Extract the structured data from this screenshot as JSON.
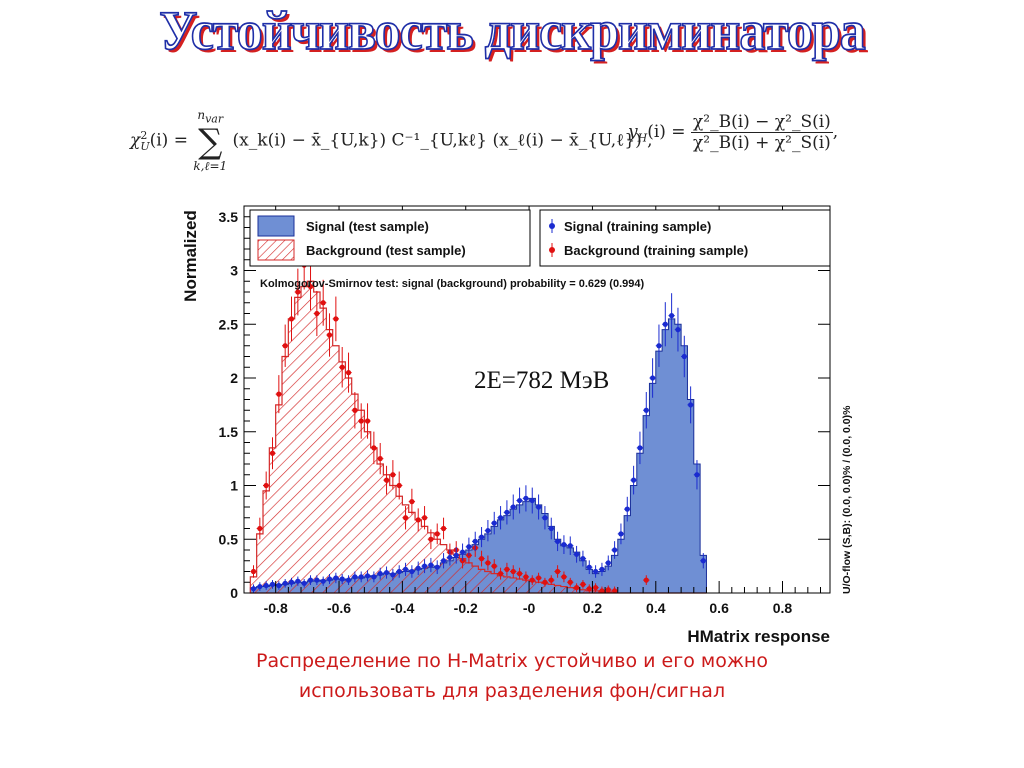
{
  "slide": {
    "title": "Устойчивость дискриминатора",
    "caption_line1": "Распределение по H-Matrix устойчиво и его можно",
    "caption_line2": "использовать для разделения фон/сигнал",
    "annotation": "2E=782 МэВ",
    "formula_chi": {
      "lhs_sym": "χ",
      "lhs_sup": "2",
      "lhs_sub": "U",
      "lhs_arg": "(i) =",
      "sum_top": "n",
      "sum_top_sub": "var",
      "sum_bottom": "k,ℓ=1",
      "body": "(x_k(i) − x̄_{U,k}) C⁻¹_{U,kℓ} (x_ℓ(i) − x̄_{U,ℓ}) ,"
    },
    "formula_yh": {
      "lhs": "y",
      "lhs_sub": "H",
      "lhs_arg": "(i) =",
      "num": "χ²_B(i) − χ²_S(i)",
      "den": "χ²_B(i) + χ²_S(i)",
      "tail": ","
    }
  },
  "chart_data": {
    "type": "histogram",
    "xlabel": "HMatrix response",
    "ylabel": "Normalized",
    "xlim": [
      -0.9,
      0.95
    ],
    "ylim": [
      0,
      3.6
    ],
    "xticks": [
      "-0.8",
      "-0.6",
      "-0.4",
      "-0.2",
      "-0",
      "0.2",
      "0.4",
      "0.6",
      "0.8"
    ],
    "xtick_values": [
      -0.8,
      -0.6,
      -0.4,
      -0.2,
      0,
      0.2,
      0.4,
      0.6,
      0.8
    ],
    "yticks": [
      "0",
      "0.5",
      "1",
      "1.5",
      "2",
      "2.5",
      "3",
      "3.5"
    ],
    "ytick_values": [
      0,
      0.5,
      1,
      1.5,
      2,
      2.5,
      3,
      3.5
    ],
    "legend": [
      {
        "label": "Signal (test sample)",
        "style": "fill-blue"
      },
      {
        "label": "Signal (training sample)",
        "style": "dot-blue"
      },
      {
        "label": "Background (test sample)",
        "style": "hatch-red"
      },
      {
        "label": "Background (training sample)",
        "style": "dot-red"
      }
    ],
    "ks_text": "Kolmogorov-Smirnov test: signal (background) probability = 0.629 (0.994)",
    "overflow_text": "U/O-flow (S,B): (0.0, 0.0)% / (0.0, 0.0)%",
    "colors": {
      "signal_fill": "#6f8fd4",
      "signal_line": "#1a2f9a",
      "signal_dot": "#1a2bd0",
      "bg_line": "#d42a2a",
      "bg_dot": "#e01010"
    },
    "bin_edges_start": -0.88,
    "bin_width": 0.02,
    "signal_test": [
      0.05,
      0.06,
      0.06,
      0.07,
      0.08,
      0.08,
      0.09,
      0.1,
      0.1,
      0.11,
      0.11,
      0.12,
      0.12,
      0.13,
      0.12,
      0.13,
      0.14,
      0.14,
      0.15,
      0.16,
      0.17,
      0.18,
      0.18,
      0.19,
      0.2,
      0.21,
      0.22,
      0.23,
      0.24,
      0.25,
      0.28,
      0.3,
      0.33,
      0.36,
      0.4,
      0.45,
      0.5,
      0.55,
      0.62,
      0.68,
      0.72,
      0.78,
      0.82,
      0.85,
      0.88,
      0.82,
      0.74,
      0.62,
      0.5,
      0.44,
      0.42,
      0.38,
      0.3,
      0.22,
      0.18,
      0.2,
      0.25,
      0.35,
      0.5,
      0.72,
      1.0,
      1.3,
      1.65,
      1.95,
      2.25,
      2.45,
      2.55,
      2.5,
      2.3,
      1.8,
      1.2,
      0.35
    ],
    "background_test": [
      0.15,
      0.55,
      0.95,
      1.35,
      1.75,
      2.2,
      2.55,
      2.75,
      2.85,
      2.9,
      2.8,
      2.65,
      2.45,
      2.3,
      2.15,
      2.0,
      1.85,
      1.7,
      1.5,
      1.35,
      1.2,
      1.1,
      1.0,
      0.9,
      0.82,
      0.75,
      0.68,
      0.62,
      0.56,
      0.5,
      0.45,
      0.4,
      0.36,
      0.32,
      0.28,
      0.25,
      0.22,
      0.2,
      0.18,
      0.16,
      0.15,
      0.14,
      0.13,
      0.12,
      0.11,
      0.1,
      0.09,
      0.08,
      0.07,
      0.06,
      0.05,
      0.04,
      0.03,
      0.02,
      0.02,
      0.01,
      0.01,
      0,
      0,
      0,
      0,
      0,
      0,
      0,
      0,
      0,
      0,
      0,
      0,
      0,
      0,
      0
    ],
    "signal_train": [
      0.04,
      0.06,
      0.07,
      0.08,
      0.07,
      0.09,
      0.1,
      0.11,
      0.09,
      0.12,
      0.12,
      0.11,
      0.13,
      0.14,
      0.13,
      0.12,
      0.15,
      0.15,
      0.16,
      0.15,
      0.18,
      0.19,
      0.17,
      0.2,
      0.22,
      0.2,
      0.23,
      0.25,
      0.26,
      0.24,
      0.3,
      0.33,
      0.35,
      0.38,
      0.43,
      0.48,
      0.52,
      0.58,
      0.65,
      0.7,
      0.75,
      0.8,
      0.86,
      0.88,
      0.86,
      0.8,
      0.7,
      0.6,
      0.48,
      0.45,
      0.44,
      0.36,
      0.32,
      0.24,
      0.2,
      0.22,
      0.28,
      0.4,
      0.55,
      0.78,
      1.05,
      1.35,
      1.7,
      2.0,
      2.3,
      2.5,
      2.58,
      2.45,
      2.2,
      1.75,
      1.1,
      0.3
    ],
    "background_train": [
      0.2,
      0.6,
      1.0,
      1.3,
      1.85,
      2.3,
      2.55,
      2.8,
      3.05,
      2.85,
      2.6,
      2.7,
      2.4,
      2.55,
      2.1,
      2.05,
      1.7,
      1.6,
      1.6,
      1.35,
      1.25,
      1.05,
      1.1,
      1.0,
      0.7,
      0.85,
      0.68,
      0.7,
      0.5,
      0.55,
      0.6,
      0.38,
      0.4,
      0.3,
      0.35,
      0.42,
      0.32,
      0.28,
      0.25,
      0.18,
      0.22,
      0.2,
      0.18,
      0.15,
      0.12,
      0.14,
      0.1,
      0.12,
      0.2,
      0.15,
      0.1,
      0.05,
      0.08,
      0.04,
      0.05,
      0.02,
      0.03,
      0.02,
      0,
      0,
      0,
      0,
      0.12,
      0,
      0,
      0,
      0,
      0,
      0,
      0,
      0,
      0
    ]
  }
}
